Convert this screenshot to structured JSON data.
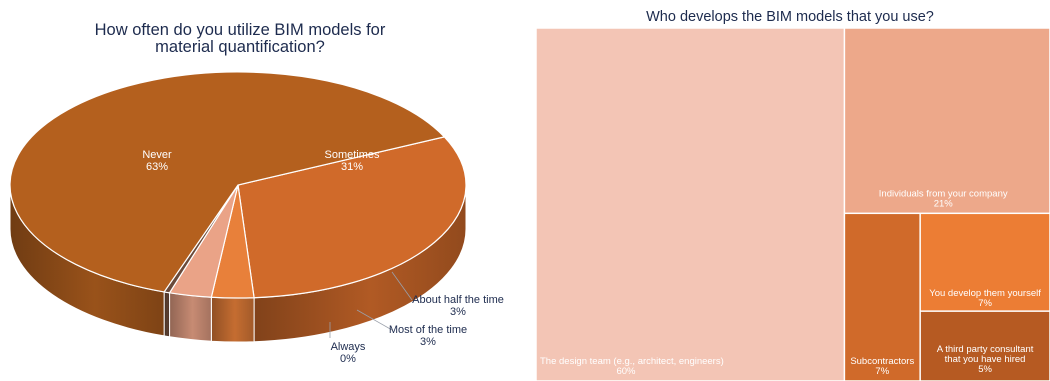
{
  "chart_data": [
    {
      "type": "pie",
      "title_lines": [
        "How often do you utilize BIM models for",
        "material quantification?"
      ],
      "slices": [
        {
          "label": "Sometimes",
          "value": 31,
          "pct_label": "31%",
          "color": "#d06a2a"
        },
        {
          "label": "About half the time",
          "value": 3,
          "pct_label": "3%",
          "color": "#e8803a"
        },
        {
          "label": "Most of the time",
          "value": 3,
          "pct_label": "3%",
          "color": "#eaa387"
        },
        {
          "label": "Always",
          "value": 0.4,
          "pct_label": "0%",
          "color": "#6a4a3a"
        },
        {
          "label": "Never",
          "value": 63,
          "pct_label": "63%",
          "color": "#b4601e"
        }
      ],
      "legend": "callouts"
    },
    {
      "type": "treemap",
      "title": "Who develops the BIM models that you use?",
      "items": [
        {
          "label": "The design team (e.g., architect, engineers)",
          "value": 60,
          "pct_label": "60%",
          "color": "#f3c5b5"
        },
        {
          "label": "Individuals from your company",
          "value": 21,
          "pct_label": "21%",
          "color": "#eda88a"
        },
        {
          "label": "Subcontractors",
          "value": 7,
          "pct_label": "7%",
          "color": "#d06a2a"
        },
        {
          "label": "You develop them yourself",
          "value": 7,
          "pct_label": "7%",
          "color": "#ec7d34"
        },
        {
          "label": "A third party consultant that you have hired",
          "value": 5,
          "pct_label": "5%",
          "color": "#b65a22"
        }
      ]
    }
  ]
}
